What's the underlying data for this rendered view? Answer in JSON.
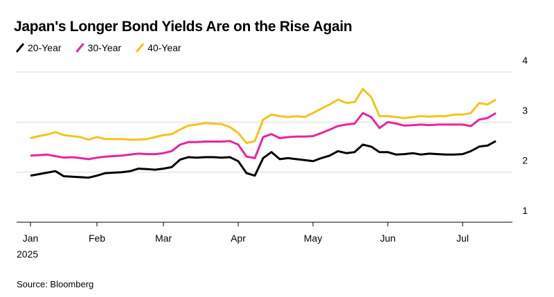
{
  "chart_data": {
    "type": "line",
    "title": "Japan's Longer Bond Yields Are on the Rise Again",
    "source": "Source: Bloomberg",
    "x_sublabel": "2025",
    "categories": [
      "Jan",
      null,
      null,
      null,
      null,
      null,
      null,
      null,
      "Feb",
      null,
      null,
      null,
      null,
      null,
      null,
      null,
      "Mar",
      null,
      null,
      null,
      null,
      null,
      null,
      null,
      null,
      "Apr",
      null,
      null,
      null,
      null,
      null,
      null,
      null,
      null,
      "May",
      null,
      null,
      null,
      null,
      null,
      null,
      null,
      null,
      "Jun",
      null,
      null,
      null,
      null,
      null,
      null,
      null,
      null,
      "Jul",
      null,
      null,
      null,
      null
    ],
    "series": [
      {
        "name": "20-Year",
        "color": "#000000",
        "values": [
          1.93,
          1.96,
          1.99,
          2.02,
          1.92,
          1.91,
          1.9,
          1.89,
          1.93,
          1.98,
          1.99,
          2.0,
          2.02,
          2.07,
          2.06,
          2.05,
          2.07,
          2.1,
          2.25,
          2.3,
          2.29,
          2.3,
          2.3,
          2.29,
          2.3,
          2.22,
          1.98,
          1.93,
          2.28,
          2.4,
          2.26,
          2.28,
          2.26,
          2.24,
          2.22,
          2.28,
          2.33,
          2.42,
          2.38,
          2.4,
          2.55,
          2.51,
          2.4,
          2.4,
          2.35,
          2.36,
          2.38,
          2.35,
          2.37,
          2.36,
          2.35,
          2.35,
          2.36,
          2.42,
          2.51,
          2.53,
          2.62
        ]
      },
      {
        "name": "30-Year",
        "color": "#e8239c",
        "values": [
          2.33,
          2.34,
          2.35,
          2.32,
          2.29,
          2.3,
          2.28,
          2.26,
          2.29,
          2.31,
          2.32,
          2.33,
          2.35,
          2.37,
          2.36,
          2.36,
          2.38,
          2.42,
          2.55,
          2.6,
          2.6,
          2.61,
          2.61,
          2.61,
          2.62,
          2.55,
          2.31,
          2.28,
          2.7,
          2.76,
          2.68,
          2.7,
          2.71,
          2.71,
          2.72,
          2.78,
          2.85,
          2.92,
          2.95,
          2.97,
          3.18,
          3.1,
          2.88,
          3.0,
          2.97,
          2.93,
          2.94,
          2.95,
          2.94,
          2.95,
          2.95,
          2.95,
          2.95,
          2.92,
          3.05,
          3.08,
          3.18
        ]
      },
      {
        "name": "40-Year",
        "color": "#f6c21c",
        "values": [
          2.68,
          2.72,
          2.75,
          2.8,
          2.74,
          2.72,
          2.7,
          2.65,
          2.7,
          2.66,
          2.66,
          2.66,
          2.65,
          2.65,
          2.66,
          2.7,
          2.74,
          2.76,
          2.85,
          2.93,
          2.95,
          2.98,
          2.97,
          2.96,
          2.9,
          2.78,
          2.58,
          2.62,
          3.05,
          3.15,
          3.12,
          3.1,
          3.12,
          3.1,
          3.18,
          3.27,
          3.35,
          3.45,
          3.38,
          3.4,
          3.66,
          3.5,
          3.12,
          3.12,
          3.1,
          3.08,
          3.1,
          3.12,
          3.11,
          3.12,
          3.12,
          3.15,
          3.15,
          3.18,
          3.38,
          3.35,
          3.45
        ]
      }
    ],
    "ylim": [
      1,
      4
    ],
    "yticks": [
      1,
      2,
      3,
      4
    ],
    "grid": true
  }
}
